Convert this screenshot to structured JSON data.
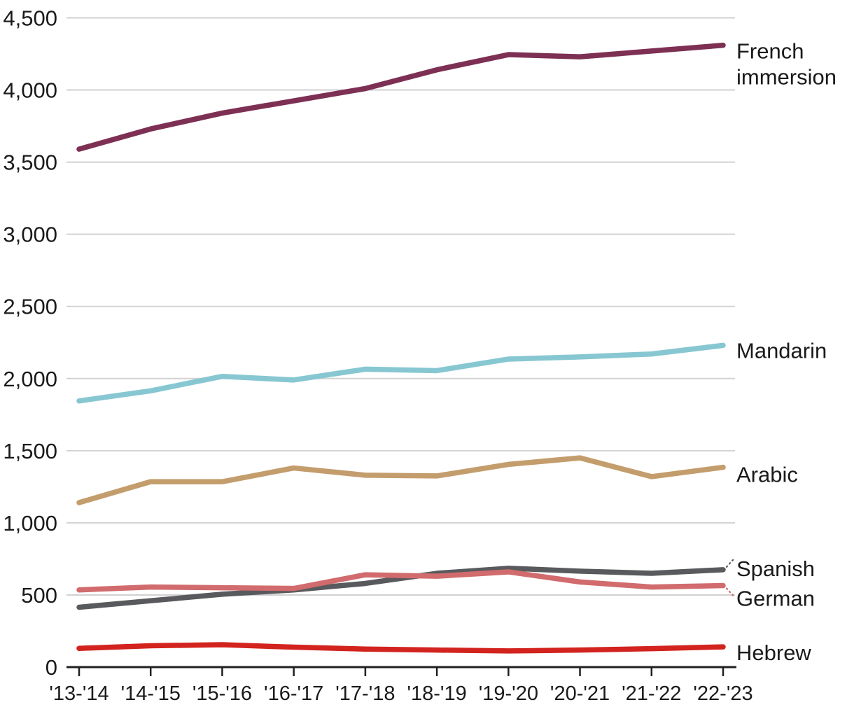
{
  "chart_data": {
    "type": "line",
    "categories": [
      "'13-'14",
      "'14-'15",
      "'15-'16",
      "'16-'17",
      "'17-'18",
      "'18-'19",
      "'19-'20",
      "'20-'21",
      "'21-'22",
      "'22-'23"
    ],
    "series": [
      {
        "name": "French immersion",
        "label_lines": [
          "French",
          "immersion"
        ],
        "color": "#7d3054",
        "values": [
          3590,
          3730,
          3840,
          3925,
          4010,
          4140,
          4245,
          4230,
          4270,
          4310
        ]
      },
      {
        "name": "Mandarin",
        "label_lines": [
          "Mandarin"
        ],
        "color": "#87c7d2",
        "values": [
          1845,
          1915,
          2015,
          1990,
          2065,
          2055,
          2135,
          2150,
          2170,
          2230
        ]
      },
      {
        "name": "Arabic",
        "label_lines": [
          "Arabic"
        ],
        "color": "#c49d6d",
        "values": [
          1140,
          1285,
          1285,
          1380,
          1330,
          1325,
          1405,
          1450,
          1320,
          1385
        ]
      },
      {
        "name": "Spanish",
        "label_lines": [
          "Spanish"
        ],
        "color": "#595a5d",
        "values": [
          415,
          460,
          505,
          535,
          580,
          650,
          685,
          665,
          650,
          675
        ],
        "leader": "up"
      },
      {
        "name": "German",
        "label_lines": [
          "German"
        ],
        "color": "#d16b6d",
        "values": [
          535,
          555,
          550,
          545,
          640,
          630,
          660,
          590,
          555,
          565
        ],
        "leader": "down"
      },
      {
        "name": "Hebrew",
        "label_lines": [
          "Hebrew"
        ],
        "color": "#d2231e",
        "values": [
          130,
          148,
          155,
          138,
          125,
          118,
          112,
          118,
          128,
          140
        ]
      }
    ],
    "xlabel": "",
    "ylabel": "",
    "ylim": [
      0,
      4500
    ],
    "ytick_step": 500,
    "ytick_labels": [
      "0",
      "500",
      "1,000",
      "1,500",
      "2,000",
      "2,500",
      "3,000",
      "3,500",
      "4,000",
      "4,500"
    ],
    "grid": true,
    "legend_position": "right-of-line-ends"
  },
  "colors": {
    "background": "#ffffff",
    "grid": "#d2d2d2",
    "axis": "#231f20",
    "text": "#1a1a1a"
  }
}
